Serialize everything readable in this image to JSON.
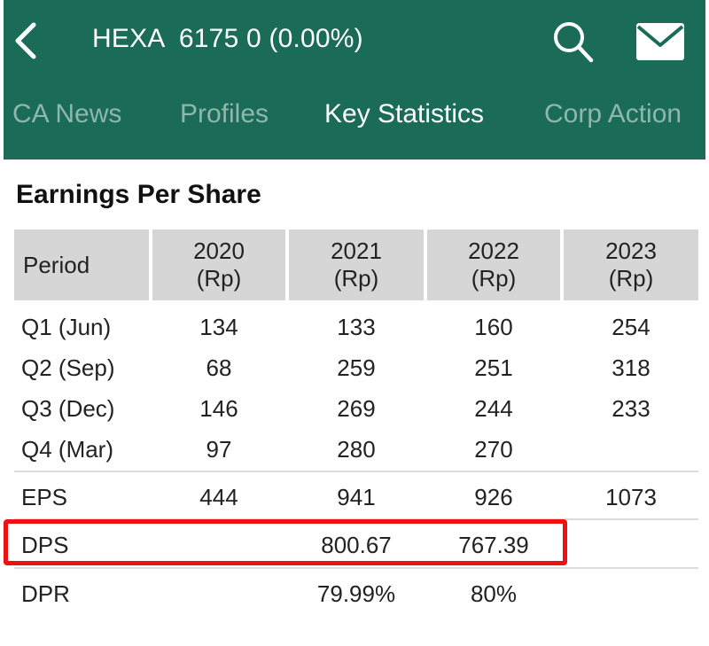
{
  "header": {
    "title": "HEXA  6175 0 (0.00%)",
    "background": "#1a6b58"
  },
  "tabs": [
    {
      "label": "CA News"
    },
    {
      "label": "Profiles"
    },
    {
      "label": "Key Statistics",
      "active": true
    },
    {
      "label": "Corp Action"
    }
  ],
  "section": {
    "title": "Earnings Per Share"
  },
  "table": {
    "columns": [
      {
        "label": "Period"
      },
      {
        "year": "2020",
        "unit": "(Rp)"
      },
      {
        "year": "2021",
        "unit": "(Rp)"
      },
      {
        "year": "2022",
        "unit": "(Rp)"
      },
      {
        "year": "2023",
        "unit": "(Rp)"
      }
    ],
    "rows": [
      {
        "label": "Q1 (Jun)",
        "values": [
          "134",
          "133",
          "160",
          "254"
        ]
      },
      {
        "label": "Q2 (Sep)",
        "values": [
          "68",
          "259",
          "251",
          "318"
        ]
      },
      {
        "label": "Q3 (Dec)",
        "values": [
          "146",
          "269",
          "244",
          "233"
        ]
      },
      {
        "label": "Q4 (Mar)",
        "values": [
          "97",
          "280",
          "270",
          ""
        ]
      },
      {
        "label": "EPS",
        "values": [
          "444",
          "941",
          "926",
          "1073"
        ]
      },
      {
        "label": "DPS",
        "values": [
          "",
          "800.67",
          "767.39",
          ""
        ]
      },
      {
        "label": "DPR",
        "values": [
          "",
          "79.99%",
          "80%",
          ""
        ]
      }
    ]
  },
  "highlight": {
    "color": "#ee1111",
    "target_row": "DPS"
  },
  "icons": {
    "back": "chevron-left-icon",
    "search": "search-icon",
    "mail": "mail-icon"
  }
}
